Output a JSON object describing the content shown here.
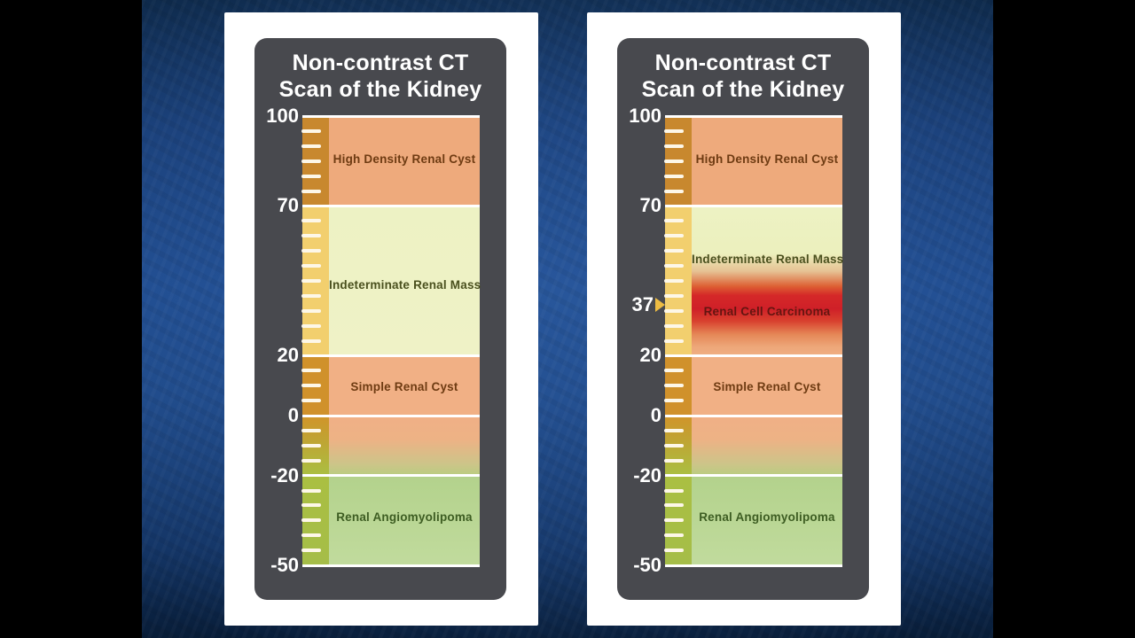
{
  "theme": {
    "letterbox_color": "#000000",
    "background_blue_top": "#0d2848",
    "background_blue_mid": "#1e4a8c",
    "background_blue_bottom": "#081d38",
    "card_background": "#ffffff",
    "chart_background": "#48494e",
    "title_color": "#ffffff",
    "axis_label_color": "#ffffff",
    "gridline_color": "#ffffff",
    "minor_tick_color": "#fdf7e8"
  },
  "chart_data": [
    {
      "type": "bar",
      "title_line1": "Non-contrast CT",
      "title_line2": "Scan of the Kidney",
      "axis": {
        "max": 100,
        "min": -50,
        "major_ticks": [
          100,
          70,
          20,
          0,
          -20,
          -50
        ],
        "minor_tick_step": 5
      },
      "ruler_stops": [
        [
          0,
          "#c8882e"
        ],
        [
          20,
          "#c8882e"
        ],
        [
          20,
          "#f2cf6e"
        ],
        [
          53.3,
          "#f2cf6e"
        ],
        [
          53.3,
          "#d0912b"
        ],
        [
          66.7,
          "#d0912b"
        ],
        [
          67,
          "#d0952a"
        ],
        [
          71,
          "#c3a031"
        ],
        [
          80,
          "#aabf42"
        ],
        [
          100,
          "#a5bd48"
        ]
      ],
      "bands": [
        {
          "name": "high-density-renal-cyst",
          "from": 70,
          "to": 100,
          "fill": "#eeaa7c",
          "labels": [
            {
              "text": "High Density Renal Cyst",
              "value": 85.5,
              "color": "#6e3b12"
            }
          ]
        },
        {
          "name": "indeterminate-renal-mass",
          "from": 20,
          "to": 70,
          "fill": [
            [
              0,
              "#edf2c4"
            ],
            [
              100,
              "#eff2c6"
            ]
          ],
          "labels": [
            {
              "text": "Indeterminate Renal Mass",
              "value": 43.5,
              "color": "#4a501e"
            }
          ]
        },
        {
          "name": "simple-renal-cyst",
          "from": 0,
          "to": 20,
          "fill": "#f1b085",
          "labels": [
            {
              "text": "Simple Renal Cyst",
              "value": 9.5,
              "color": "#6e3b12"
            }
          ]
        },
        {
          "name": "transition-zone",
          "from": -20,
          "to": 0,
          "fill": [
            [
              0,
              "#f0b086"
            ],
            [
              40,
              "#edb285"
            ],
            [
              80,
              "#cdc489"
            ],
            [
              100,
              "#b9cd80"
            ]
          ],
          "labels": []
        },
        {
          "name": "renal-angiomyolipoma",
          "from": -50,
          "to": -20,
          "fill": [
            [
              0,
              "#b3d28c"
            ],
            [
              100,
              "#c1db9d"
            ]
          ],
          "labels": [
            {
              "text": "Renal Angiomyolipoma",
              "value": -34,
              "color": "#3d5d22"
            }
          ]
        }
      ],
      "marker": null
    },
    {
      "type": "bar",
      "title_line1": "Non-contrast CT",
      "title_line2": "Scan of the Kidney",
      "axis": {
        "max": 100,
        "min": -50,
        "major_ticks": [
          100,
          70,
          20,
          0,
          -20,
          -50
        ],
        "minor_tick_step": 5
      },
      "ruler_stops": [
        [
          0,
          "#c8882e"
        ],
        [
          20,
          "#c8882e"
        ],
        [
          20,
          "#f2cf6e"
        ],
        [
          53.3,
          "#f2cf6e"
        ],
        [
          53.3,
          "#d0912b"
        ],
        [
          66.7,
          "#d0912b"
        ],
        [
          67,
          "#d0952a"
        ],
        [
          71,
          "#c3a031"
        ],
        [
          80,
          "#aabf42"
        ],
        [
          100,
          "#a5bd48"
        ]
      ],
      "bands": [
        {
          "name": "high-density-renal-cyst",
          "from": 70,
          "to": 100,
          "fill": "#eeaa7c",
          "labels": [
            {
              "text": "High Density Renal Cyst",
              "value": 85.5,
              "color": "#6e3b12"
            }
          ]
        },
        {
          "name": "indeterminate-renal-mass-with-carcinoma",
          "from": 20,
          "to": 70,
          "fill": [
            [
              0,
              "#edf2c4"
            ],
            [
              32,
              "#ecf0bd"
            ],
            [
              44,
              "#e6c193"
            ],
            [
              54,
              "#dd5f33"
            ],
            [
              60,
              "#d52828"
            ],
            [
              69,
              "#cf2028"
            ],
            [
              77,
              "#d8402e"
            ],
            [
              86,
              "#e58757"
            ],
            [
              94,
              "#eda678"
            ],
            [
              100,
              "#f0af83"
            ]
          ],
          "labels": [
            {
              "text": "Indeterminate Renal Mass",
              "value": 52,
              "color": "#4a501e"
            },
            {
              "text": "Renal Cell Carcinoma",
              "value": 34.5,
              "color": "#641510"
            }
          ]
        },
        {
          "name": "simple-renal-cyst",
          "from": 0,
          "to": 20,
          "fill": "#f1b085",
          "labels": [
            {
              "text": "Simple Renal Cyst",
              "value": 9.5,
              "color": "#6e3b12"
            }
          ]
        },
        {
          "name": "transition-zone",
          "from": -20,
          "to": 0,
          "fill": [
            [
              0,
              "#f0b086"
            ],
            [
              40,
              "#edb285"
            ],
            [
              80,
              "#cdc489"
            ],
            [
              100,
              "#b9cd80"
            ]
          ],
          "labels": []
        },
        {
          "name": "renal-angiomyolipoma",
          "from": -50,
          "to": -20,
          "fill": [
            [
              0,
              "#b3d28c"
            ],
            [
              100,
              "#c1db9d"
            ]
          ],
          "labels": [
            {
              "text": "Renal Angiomyolipoma",
              "value": -34,
              "color": "#3d5d22"
            }
          ]
        }
      ],
      "marker": {
        "value": 37,
        "label": "37",
        "arrow_color": "#edbc43",
        "text_color": "#ffffff"
      }
    }
  ]
}
